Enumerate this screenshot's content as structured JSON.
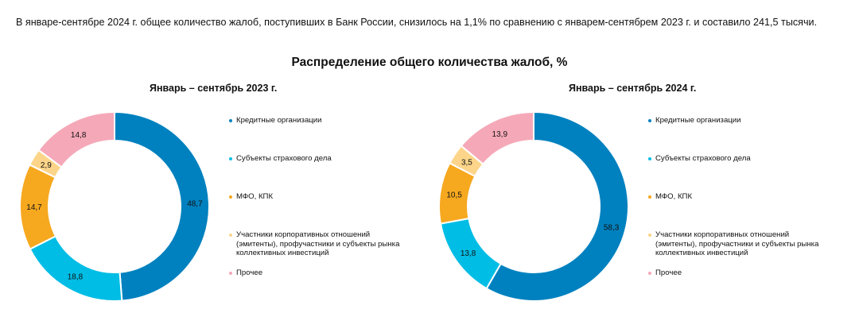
{
  "intro_text": "В январе-сентябре 2024 г. общее количество жалоб, поступивших в Банк России, снизилось на 1,1% по сравнению с январем-сентябрем 2023 г. и составило 241,5 тысячи.",
  "main_title": "Распределение общего количества жалоб, %",
  "colors": {
    "credit": "#0081BF",
    "insurance": "#00BDE5",
    "mfo": "#F6A81F",
    "corporate": "#FCD58A",
    "other": "#F5A9B8"
  },
  "chart_data": [
    {
      "type": "pie",
      "title": "Январь – сентябрь 2023 г.",
      "categories": [
        "Кредитные организации",
        "Субъекты страхового дела",
        "МФО, КПК",
        "Участники корпоративных отношений\n(эмитенты), профучастники и субъекты рынка\nколлективных инвестиций",
        "Прочее"
      ],
      "values": [
        48.7,
        18.8,
        14.7,
        2.9,
        14.8
      ],
      "labels": [
        "48,7",
        "18,8",
        "14,7",
        "2,9",
        "14,8"
      ],
      "legend": "right"
    },
    {
      "type": "pie",
      "title": "Январь – сентябрь 2024 г.",
      "categories": [
        "Кредитные организации",
        "Субъекты страхового дела",
        "МФО, КПК",
        "Участники корпоративных отношений\n(эмитенты), профучастники и субъекты рынка\nколлективных инвестиций",
        "Прочее"
      ],
      "values": [
        58.3,
        13.8,
        10.5,
        3.5,
        13.9
      ],
      "labels": [
        "58,3",
        "13,8",
        "10,5",
        "3,5",
        "13,9"
      ],
      "legend": "right"
    }
  ]
}
